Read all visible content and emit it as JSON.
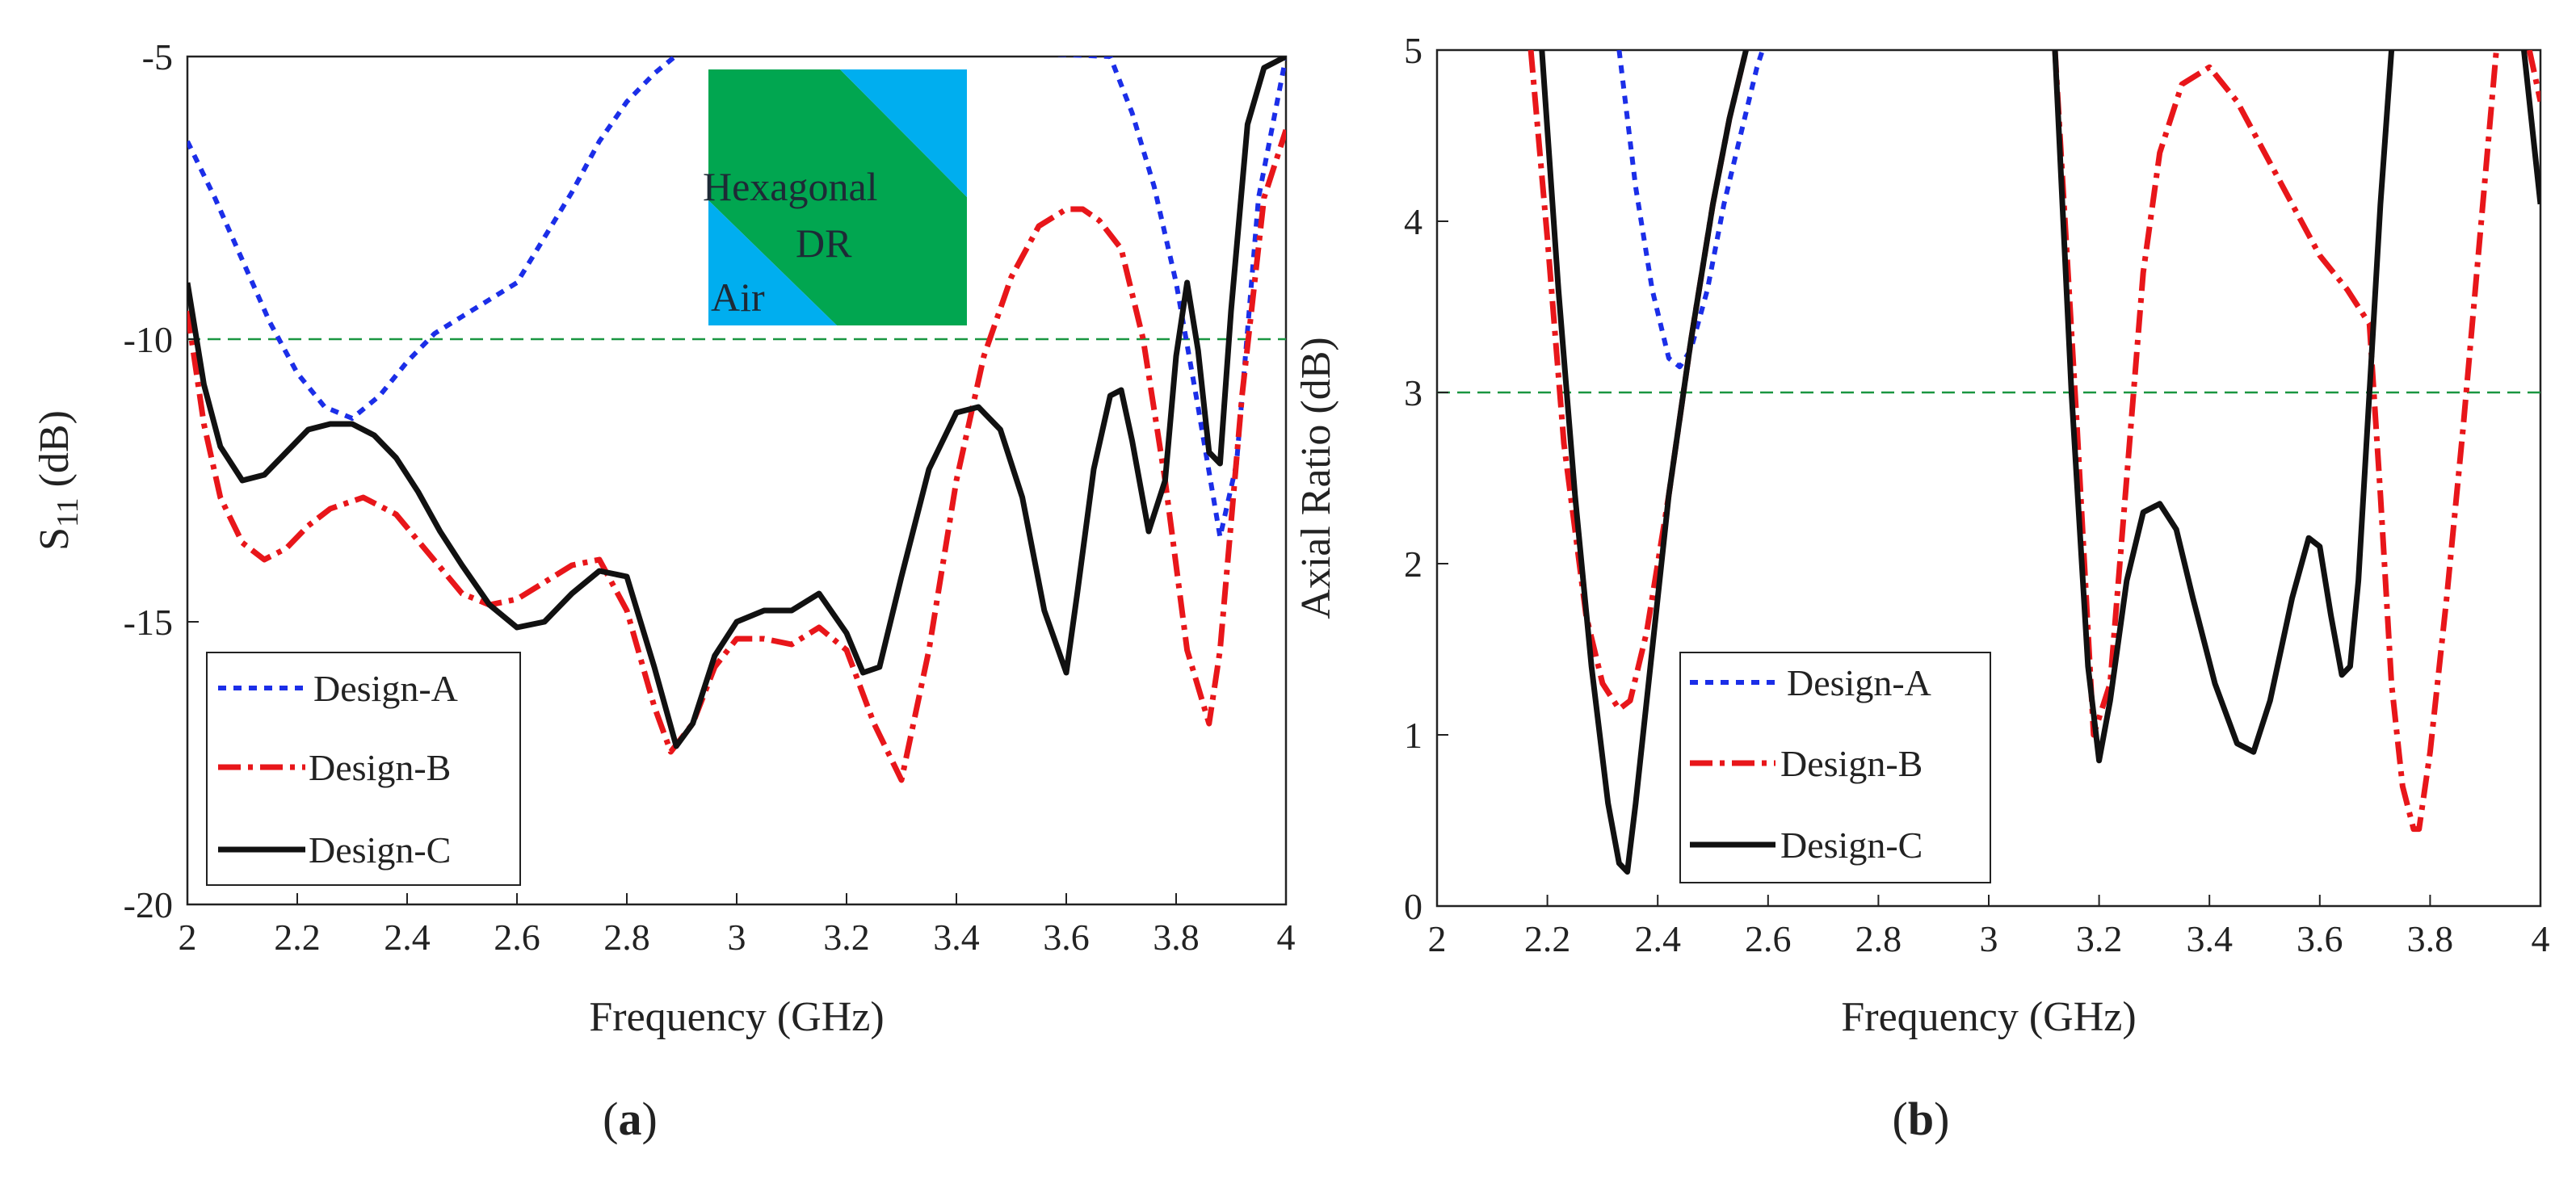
{
  "chart_data": [
    {
      "type": "line",
      "caption": "(a)",
      "caption_letter": "a",
      "xlabel": "Frequency (GHz)",
      "ylabel": "S11 (dB)",
      "ylabel_main": "S",
      "ylabel_sub": "11",
      "ylabel_unit": " (dB)",
      "xlim": [
        2,
        4
      ],
      "ylim": [
        -20,
        -5
      ],
      "x_ticks": [
        "2",
        "2.2",
        "2.4",
        "2.6",
        "2.8",
        "3",
        "3.2",
        "3.4",
        "3.6",
        "3.8",
        "4"
      ],
      "y_ticks": [
        "-5",
        "-10",
        "-15",
        "-20"
      ],
      "x_tick_values": [
        2,
        2.2,
        2.4,
        2.6,
        2.8,
        3,
        3.2,
        3.4,
        3.6,
        3.8,
        4
      ],
      "y_tick_values": [
        -5,
        -10,
        -15,
        -20
      ],
      "reference_line": -10,
      "legend_position": "bottom-left",
      "inset": {
        "label_1": "Hexagonal",
        "label_2": "DR",
        "label_3": "Air"
      },
      "series": [
        {
          "name": "Design-A",
          "color": "#1b2ee8",
          "style": "dotted",
          "x": [
            2,
            2.05,
            2.1,
            2.15,
            2.2,
            2.25,
            2.3,
            2.35,
            2.4,
            2.45,
            2.5,
            2.55,
            2.6,
            2.65,
            2.7,
            2.75,
            2.8,
            2.85,
            2.9,
            2.93,
            3.68,
            3.72,
            3.76,
            3.8,
            3.84,
            3.88,
            3.91,
            3.95,
            4
          ],
          "y": [
            -6.5,
            -7.5,
            -8.6,
            -9.7,
            -10.6,
            -11.2,
            -11.4,
            -11.0,
            -10.4,
            -9.9,
            -9.6,
            -9.3,
            -9.0,
            -8.2,
            -7.4,
            -6.5,
            -5.8,
            -5.3,
            -4.9,
            -4.7,
            -5.0,
            -6.0,
            -7.3,
            -9.0,
            -11.2,
            -13.5,
            -12.2,
            -7.5,
            -5.0
          ]
        },
        {
          "name": "Design-B",
          "color": "#e8161a",
          "style": "dashdot",
          "x": [
            2,
            2.03,
            2.06,
            2.1,
            2.14,
            2.18,
            2.22,
            2.26,
            2.32,
            2.38,
            2.44,
            2.5,
            2.55,
            2.6,
            2.65,
            2.7,
            2.75,
            2.8,
            2.85,
            2.88,
            2.92,
            2.96,
            3,
            3.05,
            3.1,
            3.15,
            3.2,
            3.25,
            3.3,
            3.35,
            3.4,
            3.45,
            3.5,
            3.55,
            3.6,
            3.63,
            3.66,
            3.7,
            3.74,
            3.78,
            3.82,
            3.86,
            3.88,
            3.92,
            3.96,
            4
          ],
          "y": [
            -9.5,
            -11.5,
            -12.8,
            -13.6,
            -13.9,
            -13.7,
            -13.3,
            -13.0,
            -12.8,
            -13.1,
            -13.8,
            -14.5,
            -14.7,
            -14.6,
            -14.3,
            -14.0,
            -13.9,
            -14.8,
            -16.5,
            -17.3,
            -16.8,
            -15.8,
            -15.3,
            -15.3,
            -15.4,
            -15.1,
            -15.5,
            -16.8,
            -17.8,
            -15.5,
            -12.5,
            -10.3,
            -8.9,
            -8.0,
            -7.7,
            -7.7,
            -7.9,
            -8.4,
            -10.0,
            -12.5,
            -15.5,
            -16.8,
            -15.5,
            -11.0,
            -7.5,
            -6.3
          ]
        },
        {
          "name": "Design-C",
          "color": "#111111",
          "style": "solid",
          "x": [
            2,
            2.03,
            2.06,
            2.1,
            2.14,
            2.18,
            2.22,
            2.26,
            2.3,
            2.34,
            2.38,
            2.42,
            2.46,
            2.5,
            2.55,
            2.6,
            2.65,
            2.7,
            2.75,
            2.8,
            2.85,
            2.89,
            2.92,
            2.96,
            3,
            3.05,
            3.1,
            3.15,
            3.2,
            3.23,
            3.26,
            3.3,
            3.35,
            3.4,
            3.44,
            3.48,
            3.52,
            3.56,
            3.6,
            3.62,
            3.65,
            3.68,
            3.7,
            3.72,
            3.75,
            3.78,
            3.8,
            3.82,
            3.84,
            3.86,
            3.88,
            3.9,
            3.93,
            3.96,
            4
          ],
          "y": [
            -9.0,
            -10.8,
            -11.9,
            -12.5,
            -12.4,
            -12.0,
            -11.6,
            -11.5,
            -11.5,
            -11.7,
            -12.1,
            -12.7,
            -13.4,
            -14.0,
            -14.7,
            -15.1,
            -15.0,
            -14.5,
            -14.1,
            -14.2,
            -15.8,
            -17.2,
            -16.8,
            -15.6,
            -15.0,
            -14.8,
            -14.8,
            -14.5,
            -15.2,
            -15.9,
            -15.8,
            -14.2,
            -12.3,
            -11.3,
            -11.2,
            -11.6,
            -12.8,
            -14.8,
            -15.9,
            -14.5,
            -12.3,
            -11.0,
            -10.9,
            -11.8,
            -13.4,
            -12.5,
            -10.3,
            -9.0,
            -10.2,
            -12.0,
            -12.2,
            -9.5,
            -6.2,
            -5.2,
            -5.0
          ]
        }
      ]
    },
    {
      "type": "line",
      "caption": "(b)",
      "caption_letter": "b",
      "xlabel": "Frequency (GHz)",
      "ylabel": "Axial Ratio (dB)",
      "xlim": [
        2,
        4
      ],
      "ylim": [
        0,
        5
      ],
      "x_ticks": [
        "2",
        "2.2",
        "2.4",
        "2.6",
        "2.8",
        "3",
        "3.2",
        "3.4",
        "3.6",
        "3.8",
        "4"
      ],
      "y_ticks": [
        "0",
        "1",
        "2",
        "3",
        "4",
        "5"
      ],
      "x_tick_values": [
        2,
        2.2,
        2.4,
        2.6,
        2.8,
        3,
        3.2,
        3.4,
        3.6,
        3.8,
        4
      ],
      "y_tick_values": [
        0,
        1,
        2,
        3,
        4,
        5
      ],
      "reference_line": 3,
      "legend_position": "bottom-left",
      "series": [
        {
          "name": "Design-A",
          "color": "#1b2ee8",
          "style": "dotted",
          "segments": [
            {
              "x": [
                2.33,
                2.36,
                2.39,
                2.42,
                2.44,
                2.46,
                2.49,
                2.52,
                2.55,
                2.58,
                2.59
              ],
              "y": [
                5.0,
                4.2,
                3.6,
                3.2,
                3.15,
                3.25,
                3.6,
                4.1,
                4.5,
                4.9,
                5.0
              ]
            }
          ]
        },
        {
          "name": "Design-B",
          "color": "#e8161a",
          "style": "dashdot",
          "segments": [
            {
              "x": [
                2.17,
                2.2,
                2.23,
                2.27,
                2.3,
                2.33,
                2.35,
                2.38,
                2.42,
                2.46,
                2.5,
                2.53,
                2.56
              ],
              "y": [
                5.0,
                3.9,
                2.7,
                1.7,
                1.3,
                1.15,
                1.2,
                1.6,
                2.4,
                3.3,
                4.1,
                4.6,
                5.0
              ]
            },
            {
              "x": [
                3.12,
                3.16,
                3.19,
                3.22,
                3.25,
                3.28,
                3.31,
                3.35,
                3.4,
                3.45,
                3.5,
                3.55,
                3.6,
                3.65,
                3.69,
                3.71,
                3.73,
                3.75,
                3.77,
                3.78,
                3.8,
                3.83,
                3.86,
                3.89,
                3.92
              ],
              "y": [
                5.0,
                2.8,
                1.0,
                1.3,
                2.5,
                3.7,
                4.4,
                4.8,
                4.9,
                4.7,
                4.4,
                4.1,
                3.8,
                3.6,
                3.4,
                2.4,
                1.3,
                0.7,
                0.45,
                0.45,
                0.9,
                1.8,
                2.8,
                3.9,
                5.0
              ]
            },
            {
              "x": [
                3.98,
                4.0
              ],
              "y": [
                5.0,
                4.7
              ]
            }
          ]
        },
        {
          "name": "Design-C",
          "color": "#111111",
          "style": "solid",
          "segments": [
            {
              "x": [
                2.19,
                2.22,
                2.25,
                2.28,
                2.31,
                2.33,
                2.345,
                2.36,
                2.39,
                2.42,
                2.46,
                2.5,
                2.53,
                2.56
              ],
              "y": [
                5.0,
                3.6,
                2.4,
                1.4,
                0.6,
                0.25,
                0.2,
                0.6,
                1.5,
                2.4,
                3.3,
                4.1,
                4.6,
                5.0
              ]
            },
            {
              "x": [
                3.12,
                3.15,
                3.18,
                3.2,
                3.22,
                3.25,
                3.28,
                3.31,
                3.34,
                3.37,
                3.41,
                3.45,
                3.48,
                3.51,
                3.55,
                3.58,
                3.6,
                3.62,
                3.64,
                3.655,
                3.67,
                3.69,
                3.71,
                3.73
              ],
              "y": [
                5.0,
                3.0,
                1.4,
                0.85,
                1.2,
                1.9,
                2.3,
                2.35,
                2.2,
                1.8,
                1.3,
                0.95,
                0.9,
                1.2,
                1.8,
                2.15,
                2.1,
                1.7,
                1.35,
                1.4,
                1.9,
                3.0,
                4.1,
                5.0
              ]
            },
            {
              "x": [
                3.97,
                4.0
              ],
              "y": [
                5.0,
                4.1
              ]
            }
          ]
        }
      ]
    }
  ]
}
